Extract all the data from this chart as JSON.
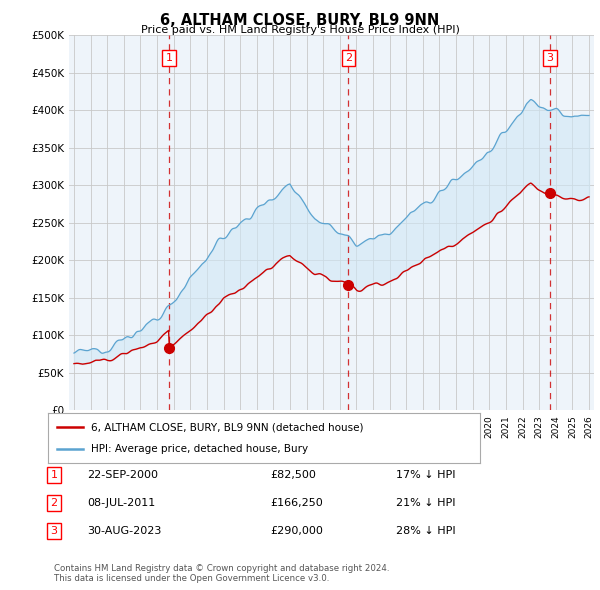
{
  "title": "6, ALTHAM CLOSE, BURY, BL9 9NN",
  "subtitle": "Price paid vs. HM Land Registry's House Price Index (HPI)",
  "ytick_values": [
    0,
    50000,
    100000,
    150000,
    200000,
    250000,
    300000,
    350000,
    400000,
    450000,
    500000
  ],
  "xlim_start": 1994.7,
  "xlim_end": 2026.3,
  "ylim_min": 0,
  "ylim_max": 500000,
  "hpi_color": "#5ba3d0",
  "hpi_fill_color": "#d0e8f5",
  "price_color": "#cc0000",
  "dashed_line_color": "#cc0000",
  "transactions": [
    {
      "label": "1",
      "date": "22-SEP-2000",
      "price": 82500,
      "price_str": "£82,500",
      "pct": "17% ↓ HPI",
      "year": 2000.72
    },
    {
      "label": "2",
      "date": "08-JUL-2011",
      "price": 166250,
      "price_str": "£166,250",
      "pct": "21% ↓ HPI",
      "year": 2011.52
    },
    {
      "label": "3",
      "date": "30-AUG-2023",
      "price": 290000,
      "price_str": "£290,000",
      "pct": "28% ↓ HPI",
      "year": 2023.66
    }
  ],
  "legend_label_price": "6, ALTHAM CLOSE, BURY, BL9 9NN (detached house)",
  "legend_label_hpi": "HPI: Average price, detached house, Bury",
  "footer": "Contains HM Land Registry data © Crown copyright and database right 2024.\nThis data is licensed under the Open Government Licence v3.0.",
  "background_color": "#ffffff",
  "grid_color": "#c8c8c8",
  "plot_bg_color": "#eef4fa"
}
